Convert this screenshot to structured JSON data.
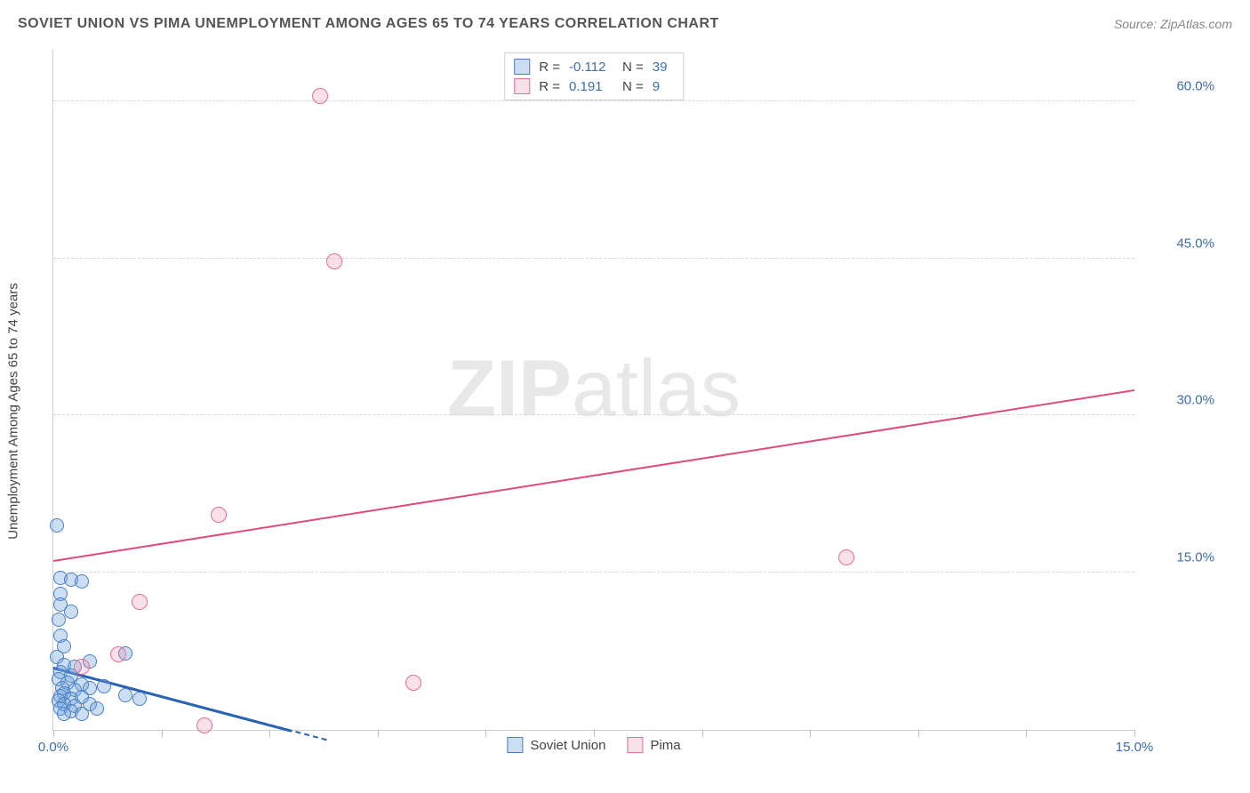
{
  "title": "SOVIET UNION VS PIMA UNEMPLOYMENT AMONG AGES 65 TO 74 YEARS CORRELATION CHART",
  "source": "Source: ZipAtlas.com",
  "y_axis_label": "Unemployment Among Ages 65 to 74 years",
  "watermark": {
    "bold": "ZIP",
    "light": "atlas"
  },
  "chart": {
    "type": "scatter",
    "background_color": "#ffffff",
    "grid_color": "#d8d8d8",
    "axis_color": "#d0d0d0",
    "tick_label_color": "#3b6db5",
    "label_fontsize": 15,
    "xlim": [
      0,
      15
    ],
    "ylim": [
      0,
      65
    ],
    "x_ticks": [
      0,
      1.5,
      3.0,
      4.5,
      6.0,
      7.5,
      9.0,
      10.5,
      12.0,
      13.5,
      15.0
    ],
    "x_tick_labels": {
      "0": "0.0%",
      "15": "15.0%"
    },
    "y_grid": [
      15,
      30,
      45,
      60
    ],
    "y_tick_labels": {
      "15": "15.0%",
      "30": "30.0%",
      "45": "45.0%",
      "60": "60.0%"
    },
    "series": [
      {
        "name": "Soviet Union",
        "fill": "rgba(110,160,220,0.35)",
        "stroke": "#4a80c0",
        "marker_radius": 8,
        "R": "-0.112",
        "N": "39",
        "trend": {
          "x1": 0,
          "y1": 6.0,
          "x2": 3.3,
          "y2": 0,
          "color": "#2a62b4",
          "width": 3
        },
        "points": [
          [
            0.05,
            19.5
          ],
          [
            0.1,
            14.5
          ],
          [
            0.25,
            14.3
          ],
          [
            0.4,
            14.2
          ],
          [
            0.1,
            13
          ],
          [
            0.1,
            12
          ],
          [
            0.25,
            11.3
          ],
          [
            0.08,
            10.5
          ],
          [
            0.1,
            9.0
          ],
          [
            0.15,
            8.0
          ],
          [
            0.05,
            7.0
          ],
          [
            1.0,
            7.3
          ],
          [
            0.15,
            6.2
          ],
          [
            0.3,
            6.0
          ],
          [
            0.1,
            5.5
          ],
          [
            0.25,
            5.2
          ],
          [
            0.08,
            4.8
          ],
          [
            0.5,
            6.5
          ],
          [
            0.2,
            4.5
          ],
          [
            0.4,
            4.3
          ],
          [
            0.12,
            4.0
          ],
          [
            0.3,
            3.8
          ],
          [
            0.15,
            3.5
          ],
          [
            0.5,
            4.0
          ],
          [
            0.7,
            4.2
          ],
          [
            0.1,
            3.2
          ],
          [
            0.25,
            3.0
          ],
          [
            0.4,
            3.1
          ],
          [
            0.08,
            2.8
          ],
          [
            1.0,
            3.3
          ],
          [
            0.15,
            2.5
          ],
          [
            0.3,
            2.3
          ],
          [
            0.5,
            2.5
          ],
          [
            0.1,
            2.0
          ],
          [
            0.25,
            1.8
          ],
          [
            0.6,
            2.0
          ],
          [
            0.15,
            1.5
          ],
          [
            1.2,
            3.0
          ],
          [
            0.4,
            1.5
          ]
        ]
      },
      {
        "name": "Pima",
        "fill": "rgba(235,130,165,0.25)",
        "stroke": "#e47099",
        "marker_radius": 9,
        "R": "0.191",
        "N": "9",
        "trend": {
          "x1": 0,
          "y1": 16.2,
          "x2": 15,
          "y2": 32.5,
          "color": "#e04a7d",
          "width": 2
        },
        "points": [
          [
            3.7,
            60.5
          ],
          [
            3.9,
            44.7
          ],
          [
            2.3,
            20.5
          ],
          [
            11.0,
            16.5
          ],
          [
            1.2,
            12.2
          ],
          [
            0.9,
            7.2
          ],
          [
            0.4,
            6.0
          ],
          [
            5.0,
            4.5
          ],
          [
            2.1,
            0.4
          ]
        ]
      }
    ]
  },
  "legend_top": {
    "rows": [
      {
        "swatch_fill": "rgba(110,160,220,0.35)",
        "swatch_stroke": "#4a80c0",
        "R_label": "R =",
        "R": "-0.112",
        "N_label": "N =",
        "N": "39"
      },
      {
        "swatch_fill": "rgba(235,130,165,0.25)",
        "swatch_stroke": "#e47099",
        "R_label": "R =",
        "R": " 0.191",
        "N_label": "N =",
        "N": " 9"
      }
    ]
  },
  "legend_bottom": [
    {
      "swatch_fill": "rgba(110,160,220,0.35)",
      "swatch_stroke": "#4a80c0",
      "label": "Soviet Union"
    },
    {
      "swatch_fill": "rgba(235,130,165,0.25)",
      "swatch_stroke": "#e47099",
      "label": "Pima"
    }
  ]
}
